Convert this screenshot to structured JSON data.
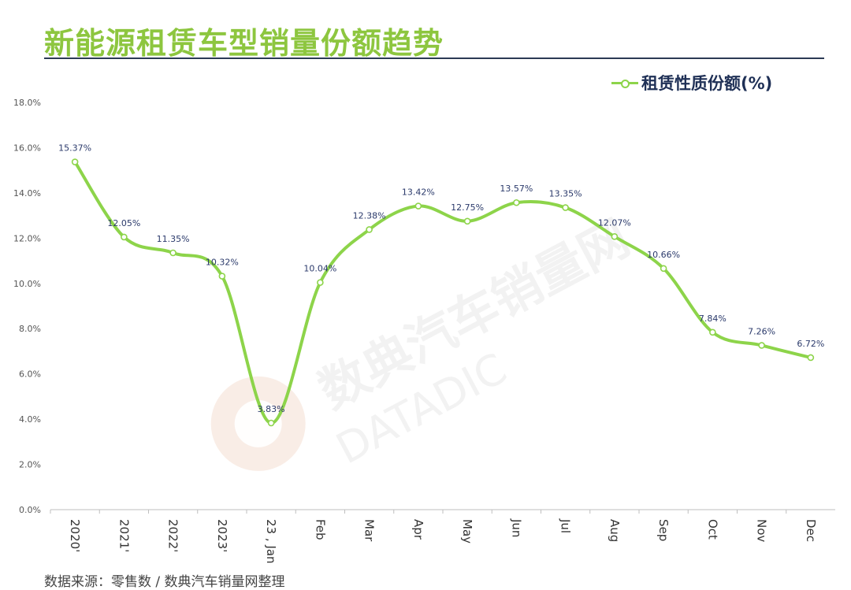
{
  "title": "新能源租赁车型销量份额趋势",
  "footer": "数据来源：零售数 / 数典汽车销量网整理",
  "watermark": {
    "cn": "数典汽车销量网",
    "en": "DATADIC"
  },
  "colors": {
    "title": "#8dc63f",
    "line": "#8dd44a",
    "label": "#2b3a6b",
    "rule": "#2b3a55"
  },
  "chart_data": {
    "type": "line",
    "categories": [
      "2020'",
      "2021'",
      "2022'",
      "2023'",
      "23 , Jan",
      "Feb",
      "Mar",
      "Apr",
      "May",
      "Jun",
      "Jul",
      "Aug",
      "Sep",
      "Oct",
      "Nov",
      "Dec"
    ],
    "series": [
      {
        "name": "租赁性质份额(%)",
        "values": [
          15.37,
          12.05,
          11.35,
          10.32,
          3.83,
          10.04,
          12.38,
          13.42,
          12.75,
          13.57,
          13.35,
          12.07,
          10.66,
          7.84,
          7.26,
          6.72
        ],
        "labels": [
          "15.37%",
          "12.05%",
          "11.35%",
          "10.32%",
          "3.83%",
          "10.04%",
          "12.38%",
          "13.42%",
          "12.75%",
          "13.57%",
          "13.35%",
          "12.07%",
          "10.66%",
          "7.84%",
          "7.26%",
          "6.72%"
        ]
      }
    ],
    "ylim": [
      0,
      18
    ],
    "yticks": [
      "0.0%",
      "2.0%",
      "4.0%",
      "6.0%",
      "8.0%",
      "10.0%",
      "12.0%",
      "14.0%",
      "16.0%",
      "18.0%"
    ],
    "xlabel": "",
    "ylabel": "",
    "grid": false,
    "legend": "top-right",
    "x_label_rotation": 90
  }
}
